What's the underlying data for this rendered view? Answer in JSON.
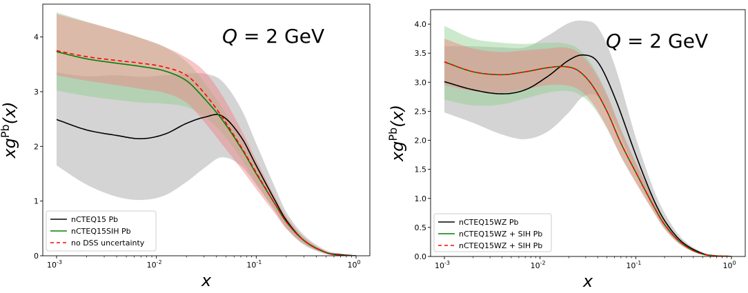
{
  "chart_data": [
    {
      "type": "line",
      "xscale": "log",
      "xlim": [
        0.001,
        1
      ],
      "ylim": [
        0,
        4.6
      ],
      "xlabel": "x",
      "ylabel": "xg^Pb(x)",
      "annotation": "Q = 2 GeV",
      "xticks": [
        "10^-3",
        "10^-2",
        "10^-1",
        "10^0"
      ],
      "yticks": [
        "0",
        "1",
        "2",
        "3",
        "4"
      ],
      "legend_position": "lower-left",
      "grid": false,
      "series": [
        {
          "name": "nCTEQ15 Pb",
          "color": "#000000",
          "style": "solid",
          "band_color": "#a0a0a0",
          "x": [
            0.001,
            0.002,
            0.004,
            0.007,
            0.012,
            0.02,
            0.03,
            0.045,
            0.07,
            0.1,
            0.15,
            0.2,
            0.3,
            0.5,
            0.7,
            1.0
          ],
          "y": [
            2.49,
            2.3,
            2.2,
            2.14,
            2.22,
            2.42,
            2.53,
            2.56,
            2.18,
            1.65,
            1.05,
            0.65,
            0.28,
            0.06,
            0.02,
            0.0
          ],
          "y_low": [
            1.65,
            1.3,
            1.08,
            1.02,
            1.1,
            1.35,
            1.6,
            1.8,
            1.65,
            1.3,
            0.85,
            0.5,
            0.2,
            0.03,
            0.0,
            0.0
          ],
          "y_high": [
            3.35,
            3.28,
            3.3,
            3.27,
            3.3,
            3.33,
            3.33,
            3.2,
            2.7,
            2.05,
            1.3,
            0.8,
            0.38,
            0.1,
            0.04,
            0.01
          ]
        },
        {
          "name": "nCTEQ15SIH Pb",
          "color": "#008000",
          "style": "solid",
          "band_color": "#8fce8f",
          "x": [
            0.001,
            0.002,
            0.004,
            0.007,
            0.012,
            0.02,
            0.03,
            0.045,
            0.07,
            0.1,
            0.15,
            0.2,
            0.3,
            0.5,
            0.7,
            1.0
          ],
          "y": [
            3.73,
            3.6,
            3.52,
            3.46,
            3.38,
            3.2,
            2.88,
            2.5,
            1.98,
            1.5,
            0.98,
            0.62,
            0.28,
            0.06,
            0.01,
            0.0
          ],
          "y_low": [
            3.02,
            2.92,
            2.85,
            2.8,
            2.78,
            2.72,
            2.55,
            2.25,
            1.78,
            1.32,
            0.85,
            0.52,
            0.22,
            0.04,
            0.0,
            0.0
          ],
          "y_high": [
            4.45,
            4.28,
            4.12,
            3.98,
            3.82,
            3.55,
            3.18,
            2.72,
            2.15,
            1.65,
            1.08,
            0.7,
            0.33,
            0.08,
            0.02,
            0.0
          ]
        },
        {
          "name": "no DSS uncertainty",
          "color": "#ff0000",
          "style": "dashed",
          "band_color": "#f08080",
          "x": [
            0.001,
            0.002,
            0.004,
            0.007,
            0.012,
            0.02,
            0.03,
            0.045,
            0.07,
            0.1,
            0.15,
            0.2,
            0.3,
            0.5,
            0.7,
            1.0
          ],
          "y": [
            3.75,
            3.64,
            3.57,
            3.52,
            3.45,
            3.3,
            2.98,
            2.55,
            2.0,
            1.52,
            0.98,
            0.62,
            0.28,
            0.06,
            0.01,
            0.0
          ],
          "y_low": [
            3.3,
            3.2,
            3.12,
            3.05,
            2.98,
            2.8,
            2.45,
            2.05,
            1.6,
            1.22,
            0.8,
            0.5,
            0.22,
            0.04,
            0.0,
            0.0
          ],
          "y_high": [
            4.42,
            4.27,
            4.12,
            3.98,
            3.82,
            3.62,
            3.38,
            2.95,
            2.32,
            1.75,
            1.12,
            0.72,
            0.34,
            0.08,
            0.02,
            0.0
          ]
        }
      ]
    },
    {
      "type": "line",
      "xscale": "log",
      "xlim": [
        0.001,
        1
      ],
      "ylim": [
        0,
        4.25
      ],
      "xlabel": "x",
      "ylabel": "xg^Pb(x)",
      "annotation": "Q = 2 GeV",
      "xticks": [
        "10^-3",
        "10^-2",
        "10^-1",
        "10^0"
      ],
      "yticks": [
        "0.0",
        "0.5",
        "1.0",
        "1.5",
        "2.0",
        "2.5",
        "3.0",
        "3.5",
        "4.0"
      ],
      "legend_position": "lower-left",
      "grid": false,
      "series": [
        {
          "name": "nCTEQ15WZ Pb",
          "color": "#000000",
          "style": "solid",
          "band_color": "#a0a0a0",
          "x": [
            0.001,
            0.002,
            0.004,
            0.007,
            0.012,
            0.02,
            0.028,
            0.04,
            0.06,
            0.1,
            0.15,
            0.2,
            0.3,
            0.5,
            0.7,
            1.0
          ],
          "y": [
            3.01,
            2.87,
            2.8,
            2.87,
            3.1,
            3.38,
            3.47,
            3.35,
            2.75,
            1.75,
            1.02,
            0.62,
            0.26,
            0.05,
            0.01,
            0.0
          ],
          "y_low": [
            2.48,
            2.3,
            2.1,
            2.02,
            2.15,
            2.48,
            2.75,
            2.75,
            2.3,
            1.45,
            0.85,
            0.5,
            0.2,
            0.03,
            0.0,
            0.0
          ],
          "y_high": [
            3.62,
            3.62,
            3.6,
            3.6,
            3.8,
            4.02,
            4.06,
            3.95,
            3.3,
            2.05,
            1.2,
            0.75,
            0.32,
            0.07,
            0.02,
            0.0
          ]
        },
        {
          "name": "nCTEQ15WZ + SIH Pb",
          "color": "#008000",
          "style": "solid",
          "band_color": "#8fce8f",
          "x": [
            0.001,
            0.002,
            0.004,
            0.007,
            0.012,
            0.018,
            0.025,
            0.035,
            0.05,
            0.07,
            0.1,
            0.15,
            0.2,
            0.3,
            0.5,
            1.0
          ],
          "y": [
            3.35,
            3.18,
            3.13,
            3.18,
            3.25,
            3.27,
            3.2,
            2.95,
            2.5,
            1.95,
            1.45,
            0.9,
            0.55,
            0.23,
            0.04,
            0.0
          ],
          "y_low": [
            2.7,
            2.6,
            2.62,
            2.72,
            2.82,
            2.85,
            2.8,
            2.6,
            2.2,
            1.72,
            1.28,
            0.8,
            0.48,
            0.19,
            0.03,
            0.0
          ],
          "y_high": [
            3.97,
            3.75,
            3.68,
            3.66,
            3.68,
            3.67,
            3.58,
            3.3,
            2.8,
            2.2,
            1.62,
            1.02,
            0.62,
            0.27,
            0.06,
            0.0
          ]
        },
        {
          "name": "nCTEQ15WZ + SIH Pb",
          "color": "#ff0000",
          "style": "dashed",
          "band_color": "#f08080",
          "x": [
            0.001,
            0.002,
            0.004,
            0.007,
            0.012,
            0.018,
            0.025,
            0.035,
            0.05,
            0.07,
            0.1,
            0.15,
            0.2,
            0.3,
            0.5,
            1.0
          ],
          "y": [
            3.35,
            3.18,
            3.13,
            3.18,
            3.25,
            3.27,
            3.2,
            2.95,
            2.5,
            1.95,
            1.45,
            0.9,
            0.55,
            0.23,
            0.04,
            0.0
          ],
          "y_low": [
            2.95,
            2.85,
            2.82,
            2.88,
            2.95,
            2.95,
            2.88,
            2.65,
            2.22,
            1.72,
            1.27,
            0.79,
            0.47,
            0.19,
            0.03,
            0.0
          ],
          "y_high": [
            3.75,
            3.58,
            3.52,
            3.55,
            3.58,
            3.6,
            3.52,
            3.25,
            2.78,
            2.18,
            1.62,
            1.02,
            0.63,
            0.27,
            0.06,
            0.0
          ]
        }
      ]
    }
  ]
}
